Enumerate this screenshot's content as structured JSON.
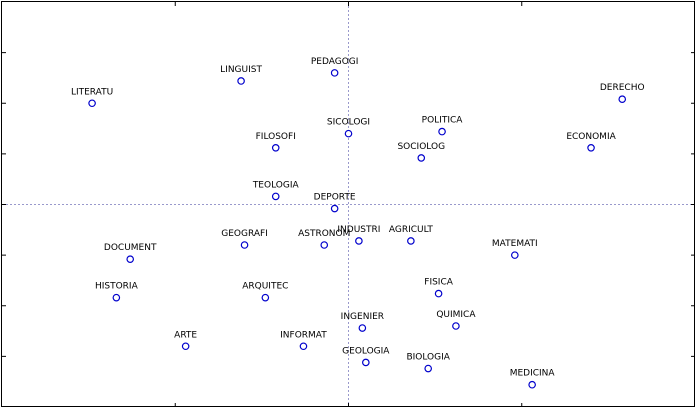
{
  "chart_data": {
    "type": "scatter",
    "title": "",
    "xlabel": "",
    "ylabel": "",
    "xlim": [
      -1.0,
      1.0
    ],
    "ylim": [
      -1.0,
      1.0
    ],
    "grid": false,
    "reference_lines": {
      "x": 0,
      "y": 0
    },
    "point_color": "#0000cc",
    "reference_line_color": "#9999cc",
    "points": [
      {
        "label": "LITERATU",
        "x": -0.74,
        "y": 0.5
      },
      {
        "label": "LINGUIST",
        "x": -0.31,
        "y": 0.61
      },
      {
        "label": "PEDAGOGI",
        "x": -0.04,
        "y": 0.65
      },
      {
        "label": "DERECHO",
        "x": 0.79,
        "y": 0.52
      },
      {
        "label": "SICOLOGI",
        "x": 0.0,
        "y": 0.35
      },
      {
        "label": "POLITICA",
        "x": 0.27,
        "y": 0.36
      },
      {
        "label": "FILOSOFI",
        "x": -0.21,
        "y": 0.28
      },
      {
        "label": "SOCIOLOG",
        "x": 0.21,
        "y": 0.23
      },
      {
        "label": "ECONOMIA",
        "x": 0.7,
        "y": 0.28
      },
      {
        "label": "TEOLOGIA",
        "x": -0.21,
        "y": 0.04
      },
      {
        "label": "DEPORTE",
        "x": -0.04,
        "y": -0.02
      },
      {
        "label": "INDUSTRI",
        "x": 0.03,
        "y": -0.18
      },
      {
        "label": "AGRICULT",
        "x": 0.18,
        "y": -0.18
      },
      {
        "label": "ASTRONOM",
        "x": -0.07,
        "y": -0.2
      },
      {
        "label": "GEOGRAFI",
        "x": -0.3,
        "y": -0.2
      },
      {
        "label": "DOCUMENT",
        "x": -0.63,
        "y": -0.27
      },
      {
        "label": "MATEMATI",
        "x": 0.48,
        "y": -0.25
      },
      {
        "label": "HISTORIA",
        "x": -0.67,
        "y": -0.46
      },
      {
        "label": "ARQUITEC",
        "x": -0.24,
        "y": -0.46
      },
      {
        "label": "FISICA",
        "x": 0.26,
        "y": -0.44
      },
      {
        "label": "QUIMICA",
        "x": 0.31,
        "y": -0.6
      },
      {
        "label": "INGENIER",
        "x": 0.04,
        "y": -0.61
      },
      {
        "label": "ARTE",
        "x": -0.47,
        "y": -0.7
      },
      {
        "label": "INFORMAT",
        "x": -0.13,
        "y": -0.7
      },
      {
        "label": "GEOLOGIA",
        "x": 0.05,
        "y": -0.78
      },
      {
        "label": "BIOLOGIA",
        "x": 0.23,
        "y": -0.81
      },
      {
        "label": "MEDICINA",
        "x": 0.53,
        "y": -0.89
      }
    ]
  }
}
